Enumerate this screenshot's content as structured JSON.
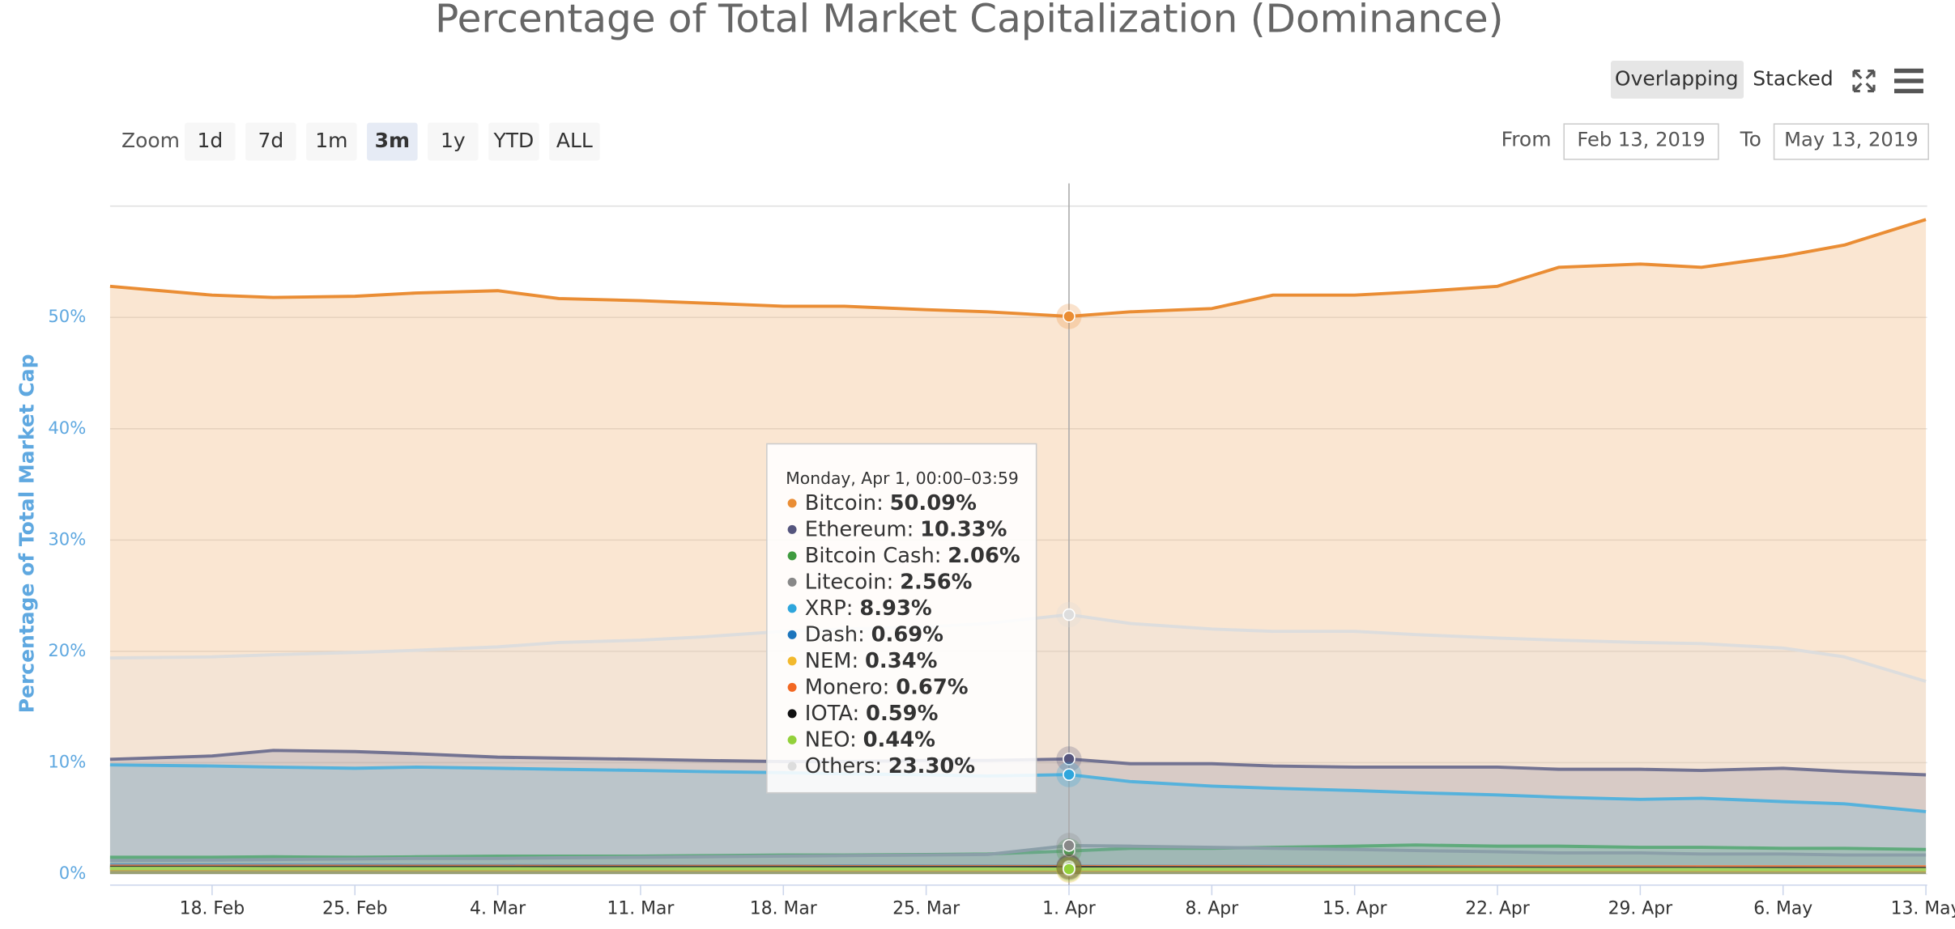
{
  "chart_data": {
    "type": "area",
    "title": "Percentage of Total Market Capitalization (Dominance)",
    "y_axis_label": "Percentage of Total Market Cap",
    "x": [
      "2019-02-13",
      "2019-02-18",
      "2019-02-21",
      "2019-02-25",
      "2019-02-28",
      "2019-03-04",
      "2019-03-07",
      "2019-03-11",
      "2019-03-14",
      "2019-03-18",
      "2019-03-21",
      "2019-03-25",
      "2019-03-28",
      "2019-04-01",
      "2019-04-04",
      "2019-04-08",
      "2019-04-11",
      "2019-04-15",
      "2019-04-18",
      "2019-04-22",
      "2019-04-25",
      "2019-04-29",
      "2019-05-02",
      "2019-05-06",
      "2019-05-09",
      "2019-05-13"
    ],
    "xlim": [
      "2019-02-13",
      "2019-05-13"
    ],
    "xticks": [
      {
        "value": "2019-02-18",
        "label": "18. Feb"
      },
      {
        "value": "2019-02-25",
        "label": "25. Feb"
      },
      {
        "value": "2019-03-04",
        "label": "4. Mar"
      },
      {
        "value": "2019-03-11",
        "label": "11. Mar"
      },
      {
        "value": "2019-03-18",
        "label": "18. Mar"
      },
      {
        "value": "2019-03-25",
        "label": "25. Mar"
      },
      {
        "value": "2019-04-01",
        "label": "1. Apr"
      },
      {
        "value": "2019-04-08",
        "label": "8. Apr"
      },
      {
        "value": "2019-04-15",
        "label": "15. Apr"
      },
      {
        "value": "2019-04-22",
        "label": "22. Apr"
      },
      {
        "value": "2019-04-29",
        "label": "29. Apr"
      },
      {
        "value": "2019-05-06",
        "label": "6. May"
      },
      {
        "value": "2019-05-13",
        "label": "13. May"
      }
    ],
    "ylim": [
      -1,
      60
    ],
    "yticks": [
      {
        "value": 0,
        "label": "0%"
      },
      {
        "value": 10,
        "label": "10%"
      },
      {
        "value": 20,
        "label": "20%"
      },
      {
        "value": 30,
        "label": "30%"
      },
      {
        "value": 40,
        "label": "40%"
      },
      {
        "value": 50,
        "label": "50%"
      }
    ],
    "grid": true,
    "series": [
      {
        "name": "Bitcoin",
        "color": "#ea8d34",
        "values": [
          52.8,
          52.0,
          51.8,
          51.9,
          52.2,
          52.4,
          51.7,
          51.5,
          51.3,
          51.0,
          51.0,
          50.7,
          50.5,
          50.09,
          50.5,
          50.8,
          52.0,
          52.0,
          52.3,
          52.8,
          54.5,
          54.8,
          54.5,
          55.5,
          56.5,
          58.8
        ]
      },
      {
        "name": "Ethereum",
        "color": "#55557d",
        "values": [
          10.3,
          10.6,
          11.1,
          11.0,
          10.8,
          10.5,
          10.4,
          10.3,
          10.2,
          10.1,
          10.1,
          10.2,
          10.2,
          10.33,
          9.9,
          9.9,
          9.7,
          9.6,
          9.6,
          9.6,
          9.4,
          9.4,
          9.3,
          9.5,
          9.2,
          8.9
        ]
      },
      {
        "name": "Bitcoin Cash",
        "color": "#3f9b3f",
        "values": [
          1.5,
          1.5,
          1.55,
          1.5,
          1.55,
          1.6,
          1.6,
          1.6,
          1.65,
          1.7,
          1.7,
          1.75,
          1.8,
          2.06,
          2.3,
          2.3,
          2.4,
          2.5,
          2.6,
          2.5,
          2.5,
          2.4,
          2.4,
          2.3,
          2.3,
          2.2
        ]
      },
      {
        "name": "Litecoin",
        "color": "#888888",
        "values": [
          1.2,
          1.25,
          1.3,
          1.35,
          1.4,
          1.4,
          1.45,
          1.5,
          1.55,
          1.6,
          1.65,
          1.7,
          1.75,
          2.56,
          2.5,
          2.4,
          2.3,
          2.2,
          2.1,
          2.0,
          1.9,
          1.9,
          1.8,
          1.8,
          1.7,
          1.7
        ]
      },
      {
        "name": "XRP",
        "color": "#2fa6dc",
        "values": [
          9.8,
          9.7,
          9.6,
          9.5,
          9.6,
          9.5,
          9.4,
          9.3,
          9.2,
          9.1,
          9.0,
          8.9,
          8.8,
          8.93,
          8.3,
          7.9,
          7.7,
          7.5,
          7.3,
          7.1,
          6.9,
          6.7,
          6.8,
          6.5,
          6.3,
          5.6
        ]
      },
      {
        "name": "Dash",
        "color": "#1c75bc",
        "values": [
          0.8,
          0.8,
          0.78,
          0.77,
          0.76,
          0.75,
          0.74,
          0.73,
          0.72,
          0.72,
          0.71,
          0.7,
          0.7,
          0.69,
          0.69,
          0.68,
          0.68,
          0.67,
          0.67,
          0.66,
          0.66,
          0.65,
          0.65,
          0.64,
          0.64,
          0.63
        ]
      },
      {
        "name": "NEM",
        "color": "#f2b92d",
        "values": [
          0.4,
          0.4,
          0.39,
          0.39,
          0.38,
          0.38,
          0.37,
          0.37,
          0.36,
          0.36,
          0.35,
          0.35,
          0.35,
          0.34,
          0.34,
          0.34,
          0.33,
          0.33,
          0.33,
          0.32,
          0.32,
          0.32,
          0.31,
          0.31,
          0.31,
          0.3
        ]
      },
      {
        "name": "Monero",
        "color": "#f26822",
        "values": [
          0.7,
          0.7,
          0.7,
          0.69,
          0.69,
          0.69,
          0.68,
          0.68,
          0.68,
          0.68,
          0.67,
          0.67,
          0.67,
          0.67,
          0.67,
          0.67,
          0.66,
          0.66,
          0.66,
          0.66,
          0.66,
          0.65,
          0.65,
          0.65,
          0.65,
          0.65
        ]
      },
      {
        "name": "IOTA",
        "color": "#111111",
        "values": [
          0.6,
          0.6,
          0.6,
          0.6,
          0.6,
          0.6,
          0.6,
          0.6,
          0.6,
          0.6,
          0.59,
          0.59,
          0.59,
          0.59,
          0.58,
          0.57,
          0.56,
          0.55,
          0.54,
          0.53,
          0.52,
          0.52,
          0.51,
          0.51,
          0.5,
          0.5
        ]
      },
      {
        "name": "NEO",
        "color": "#93d13b",
        "values": [
          0.5,
          0.5,
          0.49,
          0.49,
          0.48,
          0.48,
          0.47,
          0.47,
          0.46,
          0.46,
          0.45,
          0.45,
          0.45,
          0.44,
          0.44,
          0.43,
          0.43,
          0.42,
          0.42,
          0.42,
          0.41,
          0.41,
          0.41,
          0.4,
          0.4,
          0.4
        ]
      },
      {
        "name": "Others",
        "color": "#dddddd",
        "values": [
          19.4,
          19.5,
          19.7,
          19.9,
          20.1,
          20.4,
          20.8,
          21.0,
          21.3,
          21.8,
          22.0,
          22.2,
          22.5,
          23.3,
          22.5,
          22.0,
          21.8,
          21.8,
          21.5,
          21.2,
          21.0,
          20.8,
          20.7,
          20.3,
          19.5,
          17.3
        ]
      }
    ],
    "tooltip": {
      "header": "Monday, Apr 1, 00:00–03:59",
      "rows": [
        {
          "label": "Bitcoin:",
          "value": "50.09%"
        },
        {
          "label": "Ethereum:",
          "value": "10.33%"
        },
        {
          "label": "Bitcoin Cash:",
          "value": "2.06%"
        },
        {
          "label": "Litecoin:",
          "value": "2.56%"
        },
        {
          "label": "XRP:",
          "value": "8.93%"
        },
        {
          "label": "Dash:",
          "value": "0.69%"
        },
        {
          "label": "NEM:",
          "value": "0.34%"
        },
        {
          "label": "Monero:",
          "value": "0.67%"
        },
        {
          "label": "IOTA:",
          "value": "0.59%"
        },
        {
          "label": "NEO:",
          "value": "0.44%"
        },
        {
          "label": "Others:",
          "value": "23.30%"
        }
      ]
    }
  },
  "controls": {
    "chart_modes": [
      "Overlapping",
      "Stacked"
    ],
    "zoom_label": "Zoom",
    "zoom_buttons": [
      "1d",
      "7d",
      "1m",
      "3m",
      "1y",
      "YTD",
      "ALL"
    ],
    "from_label": "From",
    "from_value": "Feb 13, 2019",
    "to_label": "To",
    "to_value": "May 13, 2019"
  }
}
